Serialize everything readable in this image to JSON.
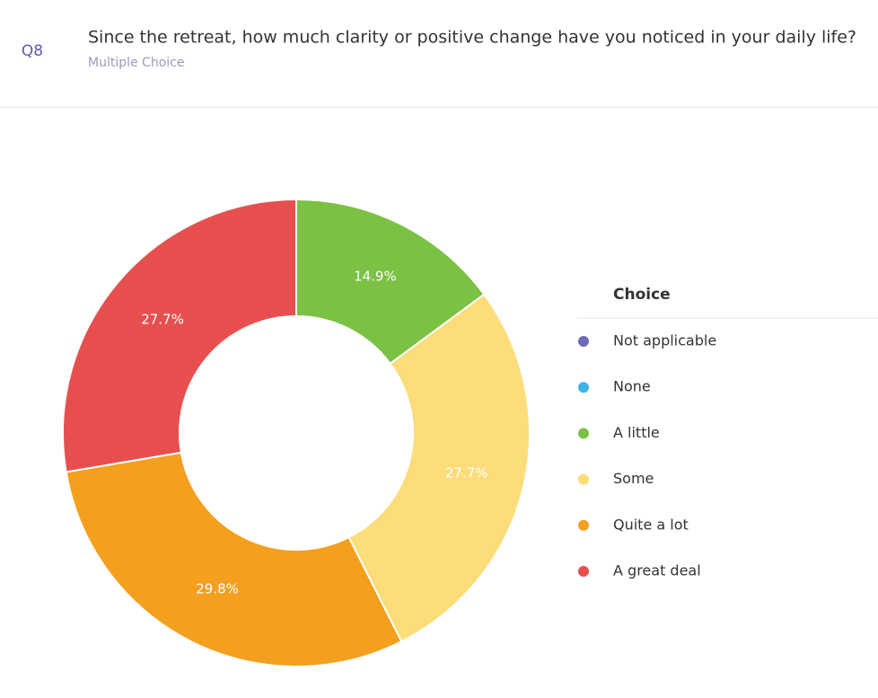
{
  "chart_data": {
    "type": "pie",
    "question_number": "Q8",
    "title": "Since the retreat, how much clarity or positive change have you noticed in your daily life?",
    "subtitle": "Multiple Choice",
    "legend_title": "Choice",
    "categories": [
      "Not applicable",
      "None",
      "A little",
      "Some",
      "Quite a lot",
      "A great deal"
    ],
    "values": [
      0,
      0,
      14.9,
      27.7,
      29.8,
      27.7
    ],
    "value_labels": [
      null,
      null,
      "14.9%",
      "27.7%",
      "29.8%",
      "27.7%"
    ],
    "colors": [
      "#6a6bb3",
      "#3cb4e5",
      "#7bc143",
      "#fddc7a",
      "#f59f1f",
      "#e74f4f"
    ],
    "hole": true,
    "legend": "right"
  }
}
